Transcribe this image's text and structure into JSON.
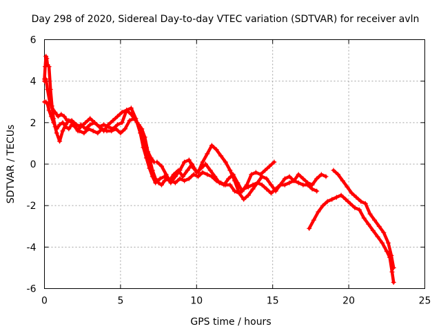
{
  "chart_data": {
    "type": "scatter",
    "title": "Day 298 of 2020, Sidereal Day-to-day VTEC variation (SDTVAR) for receiver avln",
    "xlabel": "GPS time / hours",
    "ylabel": "SDTVAR / TECUs",
    "xlim": [
      0,
      25
    ],
    "ylim": [
      -6,
      6
    ],
    "xticks": [
      0,
      5,
      10,
      15,
      20,
      25
    ],
    "yticks": [
      -6,
      -4,
      -2,
      0,
      2,
      4,
      6
    ],
    "grid": true,
    "marker": "+",
    "color": "#ff0000",
    "series": [
      {
        "name": "trace-1",
        "x": [
          0.0,
          0.1,
          0.2,
          0.3,
          0.45,
          0.6,
          0.8,
          1.0,
          1.2,
          1.4,
          1.6,
          1.8,
          2.0,
          2.3,
          2.6,
          2.9,
          3.2,
          3.5,
          3.8,
          4.1,
          4.4,
          4.7,
          5.0,
          5.3,
          5.6,
          5.9,
          6.1,
          6.3,
          6.5,
          6.7,
          6.9,
          7.1,
          7.3,
          7.5,
          7.7,
          7.9,
          8.1,
          8.3,
          8.6,
          8.9,
          9.2,
          9.5,
          9.8,
          10.1,
          10.4,
          10.7,
          11.0,
          11.3,
          11.6,
          11.9,
          12.2,
          12.5,
          12.8,
          13.1,
          13.4,
          13.7,
          14.0,
          14.3,
          14.6,
          14.9,
          15.2,
          15.5,
          15.8,
          16.1,
          16.4,
          16.7,
          17.0,
          17.3,
          17.6,
          17.9
        ],
        "y": [
          3.0,
          3.0,
          2.9,
          2.6,
          2.3,
          2.0,
          1.7,
          1.9,
          2.0,
          1.8,
          1.7,
          1.9,
          1.8,
          1.6,
          1.5,
          1.7,
          1.6,
          1.5,
          1.7,
          1.6,
          1.6,
          1.7,
          1.5,
          1.7,
          2.1,
          2.2,
          2.0,
          1.7,
          1.2,
          0.8,
          0.3,
          -0.3,
          -0.7,
          -0.9,
          -1.0,
          -0.8,
          -0.7,
          -0.8,
          -0.9,
          -0.7,
          -0.8,
          -0.7,
          -0.5,
          -0.6,
          -0.4,
          -0.5,
          -0.6,
          -0.8,
          -0.9,
          -1.0,
          -1.0,
          -1.3,
          -1.4,
          -1.2,
          -1.1,
          -1.0,
          -0.9,
          -1.0,
          -1.2,
          -1.4,
          -1.2,
          -1.0,
          -1.0,
          -0.9,
          -0.8,
          -0.9,
          -1.0,
          -1.0,
          -1.2,
          -1.3
        ]
      },
      {
        "name": "trace-2",
        "x": [
          0.0,
          0.05,
          0.1,
          0.15,
          0.2,
          0.3,
          0.4,
          0.5,
          0.6,
          0.7,
          0.8,
          1.0,
          1.2,
          1.4,
          1.6,
          1.8,
          2.0,
          2.2,
          2.4,
          2.7,
          3.0,
          3.3,
          3.6,
          3.9,
          4.2,
          4.5,
          4.8,
          5.1,
          5.4,
          5.7,
          6.0,
          6.2,
          6.4,
          6.6,
          6.8,
          7.0,
          7.2
        ],
        "y": [
          4.1,
          4.7,
          5.2,
          5.1,
          4.8,
          4.7,
          3.6,
          2.8,
          2.2,
          1.8,
          1.5,
          1.1,
          1.6,
          1.9,
          2.1,
          2.0,
          1.8,
          1.6,
          1.9,
          1.7,
          1.9,
          2.0,
          1.8,
          1.6,
          1.9,
          2.1,
          2.3,
          2.5,
          2.6,
          2.4,
          2.1,
          1.9,
          1.7,
          1.3,
          0.6,
          0.3,
          0.1
        ]
      },
      {
        "name": "trace-3",
        "x": [
          0.0,
          0.1,
          0.2,
          0.35,
          0.5,
          0.7,
          0.9,
          1.1,
          1.3,
          1.5,
          1.8,
          2.1,
          2.4,
          2.7,
          3.0,
          3.3,
          3.6,
          3.9,
          4.2,
          4.5,
          4.8,
          5.1,
          5.4,
          5.7,
          6.0,
          6.3,
          6.5,
          6.7,
          6.9,
          7.1,
          7.3,
          7.6,
          7.9,
          8.2,
          8.5,
          8.8,
          9.1,
          9.4,
          9.7,
          10.0,
          10.3,
          10.6,
          10.9,
          11.2,
          11.5,
          11.8,
          12.1,
          12.4,
          12.7,
          13.0,
          13.3,
          13.6,
          13.9,
          14.2,
          14.5,
          14.8,
          15.1
        ],
        "y": [
          4.0,
          4.1,
          3.6,
          3.0,
          2.7,
          2.5,
          2.3,
          2.4,
          2.3,
          2.1,
          2.1,
          1.9,
          1.8,
          2.0,
          2.2,
          2.0,
          1.8,
          1.9,
          1.8,
          1.7,
          1.9,
          2.0,
          2.6,
          2.7,
          2.2,
          1.5,
          0.8,
          0.3,
          -0.2,
          -0.6,
          -0.9,
          -0.7,
          -0.6,
          -0.8,
          -0.5,
          -0.3,
          -0.6,
          -0.3,
          0.0,
          -0.4,
          -0.2,
          0.0,
          -0.3,
          -0.6,
          -0.9,
          -1.0,
          -0.7,
          -0.5,
          -0.9,
          -1.3,
          -1.0,
          -0.5,
          -0.4,
          -0.5,
          -0.3,
          -0.1,
          0.1
        ]
      },
      {
        "name": "trace-4",
        "x": [
          7.4,
          7.7,
          8.0,
          8.3,
          8.6,
          8.9,
          9.2,
          9.5,
          9.8,
          10.1,
          10.4,
          10.7,
          11.0,
          11.3,
          11.6,
          11.9,
          12.2,
          12.5,
          12.8,
          13.1,
          13.4,
          13.7,
          14.0,
          14.3,
          14.6,
          14.9,
          15.2,
          15.5,
          15.8,
          16.1,
          16.4,
          16.7,
          17.0,
          17.3,
          17.6,
          17.9,
          18.2,
          18.5
        ],
        "y": [
          0.1,
          -0.1,
          -0.5,
          -0.9,
          -0.6,
          -0.3,
          0.1,
          0.2,
          -0.2,
          -0.4,
          0.1,
          0.5,
          0.9,
          0.7,
          0.4,
          0.1,
          -0.3,
          -0.8,
          -1.4,
          -1.7,
          -1.5,
          -1.2,
          -0.9,
          -0.6,
          -0.7,
          -1.0,
          -1.3,
          -1.0,
          -0.7,
          -0.6,
          -0.8,
          -0.5,
          -0.7,
          -0.9,
          -1.0,
          -0.7,
          -0.5,
          -0.6
        ]
      },
      {
        "name": "trace-5",
        "x": [
          17.4,
          17.7,
          18.0,
          18.3,
          18.6,
          18.9,
          19.2,
          19.5,
          19.8,
          20.1,
          20.4,
          20.7,
          21.0,
          21.3,
          21.6,
          21.9,
          22.2,
          22.5,
          22.7,
          22.85,
          22.95
        ],
        "y": [
          -3.1,
          -2.7,
          -2.3,
          -2.0,
          -1.8,
          -1.7,
          -1.6,
          -1.5,
          -1.7,
          -1.9,
          -2.1,
          -2.2,
          -2.6,
          -2.9,
          -3.2,
          -3.5,
          -3.8,
          -4.2,
          -4.5,
          -5.2,
          -5.7
        ]
      },
      {
        "name": "trace-6",
        "x": [
          19.0,
          19.3,
          19.6,
          19.9,
          20.2,
          20.5,
          20.8,
          21.1,
          21.4,
          21.7,
          22.0,
          22.3,
          22.6,
          22.8,
          22.95
        ],
        "y": [
          -0.3,
          -0.5,
          -0.8,
          -1.1,
          -1.4,
          -1.6,
          -1.8,
          -1.9,
          -2.4,
          -2.7,
          -3.0,
          -3.3,
          -3.8,
          -4.4,
          -5.0
        ]
      }
    ]
  }
}
